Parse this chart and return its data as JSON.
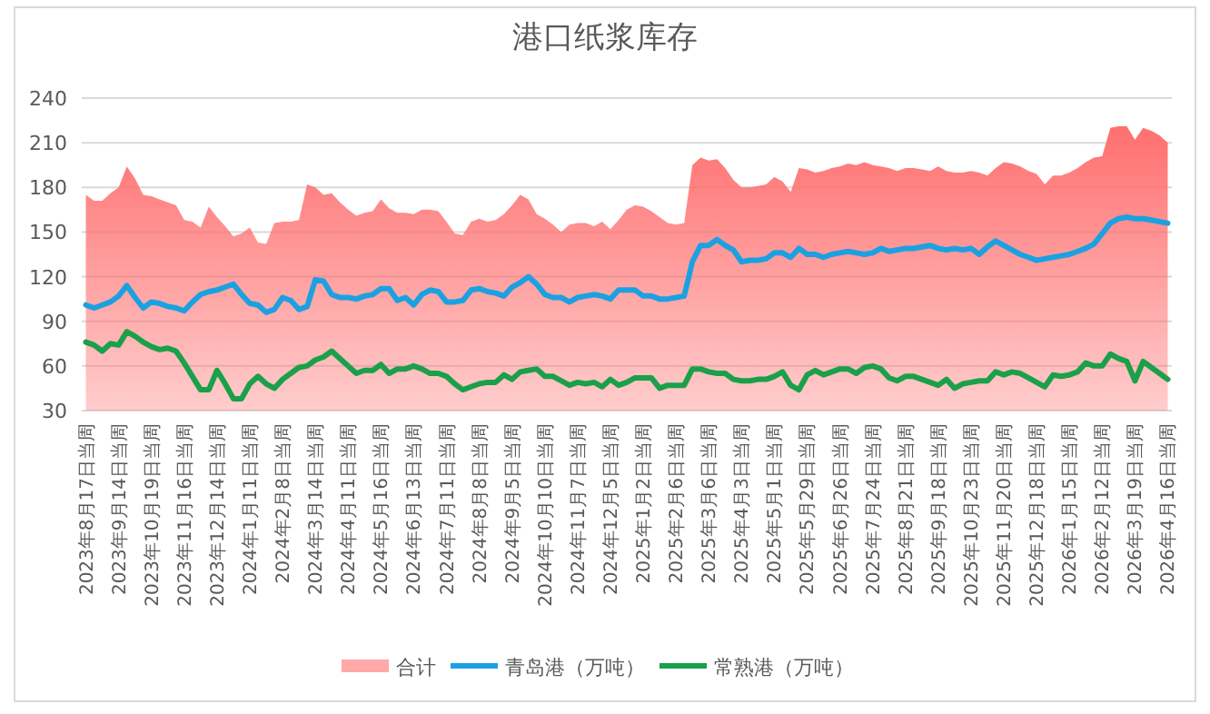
{
  "chart_data": {
    "type": "line",
    "title": "港口纸浆库存",
    "categories": [
      "2023年8月17日当周",
      null,
      null,
      null,
      "2023年9月14日当周",
      null,
      null,
      null,
      "2023年10月19日当周",
      null,
      null,
      null,
      "2023年11月16日当周",
      null,
      null,
      null,
      "2023年12月14日当周",
      null,
      null,
      null,
      "2024年1月11日当周",
      null,
      null,
      null,
      "2024年2月8日当周",
      null,
      null,
      null,
      "2024年3月14日当周",
      null,
      null,
      null,
      "2024年4月11日当周",
      null,
      null,
      null,
      "2024年5月16日当周",
      null,
      null,
      null,
      "2024年6月13日当周",
      null,
      null,
      null,
      "2024年7月11日当周",
      null,
      null,
      null,
      "2024年8月8日当周",
      null,
      null,
      null,
      "2024年9月5日当周",
      null,
      null,
      null,
      "2024年10月10日当周",
      null,
      null,
      null,
      "2024年11月7日当周",
      null,
      null,
      null,
      "2024年12月5日当周",
      null,
      null,
      null,
      "2025年1月2日当周",
      null,
      null,
      null,
      "2025年2月6日当周",
      null,
      null,
      null,
      "2025年3月6日当周",
      null,
      null,
      null,
      "2025年4月3日当周",
      null,
      null,
      null,
      "2025年5月1日当周",
      null,
      null,
      null,
      "2025年5月29日当周",
      null,
      null,
      null,
      "2025年6月26日当周",
      null,
      null,
      null,
      "2025年7月24日当周",
      null,
      null,
      null,
      "2025年8月21日当周",
      null,
      null,
      null,
      "2025年9月18日当周",
      null,
      null,
      null,
      "2025年10月23日当周",
      null,
      null,
      null,
      "2025年11月20日当周",
      null,
      null,
      null,
      "2025年12月18日当周",
      null,
      null,
      null,
      "2026年1月15日当周",
      null,
      null,
      null,
      "2026年2月12日当周",
      null,
      null,
      null,
      "2026年3月19日当周",
      null,
      null,
      null,
      "2026年4月16日当周"
    ],
    "series": [
      {
        "name": "合计",
        "type": "area",
        "color": "#ff6f6f",
        "values": [
          175,
          171,
          171,
          176,
          180,
          194,
          186,
          175,
          174,
          172,
          170,
          168,
          158,
          157,
          153,
          167,
          160,
          154,
          147,
          149,
          153,
          143,
          142,
          156,
          157,
          157,
          158,
          182,
          180,
          175,
          176,
          170,
          165,
          161,
          163,
          164,
          172,
          166,
          163,
          163,
          162,
          165,
          165,
          164,
          157,
          149,
          148,
          157,
          159,
          157,
          158,
          162,
          168,
          175,
          172,
          162,
          159,
          155,
          150,
          155,
          156,
          156,
          154,
          157,
          152,
          158,
          165,
          168,
          167,
          164,
          160,
          156,
          155,
          156,
          195,
          200,
          198,
          199,
          193,
          185,
          180,
          180,
          181,
          182,
          187,
          184,
          177,
          193,
          192,
          190,
          191,
          193,
          194,
          196,
          195,
          197,
          195,
          194,
          193,
          191,
          193,
          193,
          192,
          191,
          194,
          191,
          190,
          190,
          191,
          190,
          188,
          193,
          197,
          196,
          194,
          191,
          189,
          182,
          188,
          188,
          190,
          193,
          197,
          200,
          201,
          220,
          221,
          221,
          212,
          220,
          218,
          215,
          210
        ]
      },
      {
        "name": "青岛港（万吨）",
        "color": "#1ba1e2",
        "values": [
          101,
          99,
          101,
          103,
          107,
          114,
          106,
          99,
          103,
          102,
          100,
          99,
          97,
          103,
          108,
          110,
          111,
          113,
          115,
          108,
          102,
          101,
          96,
          98,
          106,
          104,
          98,
          100,
          118,
          117,
          108,
          106,
          106,
          105,
          107,
          108,
          112,
          112,
          104,
          106,
          101,
          108,
          111,
          110,
          103,
          103,
          104,
          111,
          112,
          110,
          109,
          107,
          113,
          116,
          120,
          115,
          108,
          106,
          106,
          103,
          106,
          107,
          108,
          107,
          105,
          111,
          111,
          111,
          107,
          107,
          105,
          105,
          106,
          107,
          130,
          141,
          141,
          145,
          141,
          138,
          130,
          131,
          131,
          132,
          136,
          136,
          133,
          139,
          135,
          135,
          133,
          135,
          136,
          137,
          136,
          135,
          136,
          139,
          137,
          138,
          139,
          139,
          140,
          141,
          139,
          138,
          139,
          138,
          139,
          135,
          140,
          144,
          141,
          138,
          135,
          133,
          131,
          132,
          133,
          134,
          135,
          137,
          139,
          142,
          149,
          156,
          159,
          160,
          159,
          159,
          158,
          157,
          156
        ]
      },
      {
        "name": "常熟港（万吨）",
        "color": "#1aa04a",
        "values": [
          76,
          74,
          70,
          75,
          74,
          83,
          80,
          76,
          73,
          71,
          72,
          70,
          62,
          53,
          44,
          44,
          57,
          48,
          38,
          38,
          48,
          53,
          48,
          45,
          51,
          55,
          59,
          60,
          64,
          66,
          70,
          65,
          60,
          55,
          57,
          57,
          61,
          55,
          58,
          58,
          60,
          58,
          55,
          55,
          53,
          48,
          44,
          46,
          48,
          49,
          49,
          54,
          51,
          56,
          57,
          58,
          53,
          53,
          50,
          47,
          49,
          48,
          49,
          46,
          51,
          47,
          49,
          52,
          52,
          52,
          45,
          47,
          47,
          47,
          58,
          58,
          56,
          55,
          55,
          51,
          50,
          50,
          51,
          51,
          53,
          56,
          47,
          44,
          54,
          57,
          54,
          56,
          58,
          58,
          55,
          59,
          60,
          58,
          52,
          50,
          53,
          53,
          51,
          49,
          47,
          51,
          45,
          48,
          49,
          50,
          50,
          56,
          54,
          56,
          55,
          52,
          49,
          46,
          54,
          53,
          54,
          56,
          62,
          60,
          60,
          68,
          65,
          63,
          50,
          63,
          59,
          55,
          51
        ]
      }
    ],
    "ylim": [
      30,
      240
    ],
    "yticks": [
      30,
      60,
      90,
      120,
      150,
      180,
      210,
      240
    ],
    "grid": "y",
    "legend": "bottom",
    "marker": "none"
  }
}
